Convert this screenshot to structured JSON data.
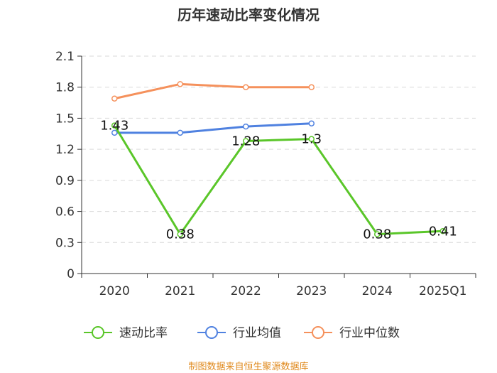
{
  "footer": {
    "source": "制图数据来自恒生聚源数据库"
  },
  "chart_data": {
    "type": "line",
    "title": "历年速动比率变化情况",
    "xlabel": "",
    "ylabel": "",
    "categories": [
      "2020",
      "2021",
      "2022",
      "2023",
      "2024",
      "2025Q1"
    ],
    "ylim": [
      0,
      2.1
    ],
    "yticks": [
      0,
      0.3,
      0.6,
      0.9,
      1.2,
      1.5,
      1.8,
      2.1
    ],
    "ytick_labels": [
      "0",
      "0.3",
      "0.6",
      "0.9",
      "1.2",
      "1.5",
      "1.8",
      "2.1"
    ],
    "grid": true,
    "legend_position": "bottom",
    "series": [
      {
        "name": "速动比率",
        "color": "#5ac629",
        "values": [
          1.43,
          0.38,
          1.28,
          1.3,
          0.38,
          0.41
        ],
        "labels": [
          "1.43",
          "0.38",
          "1.28",
          "1.3",
          "0.38",
          "0.41"
        ],
        "show_labels": true
      },
      {
        "name": "行业均值",
        "color": "#4f81e0",
        "values": [
          1.36,
          1.36,
          1.42,
          1.45,
          null,
          null
        ],
        "show_labels": false
      },
      {
        "name": "行业中位数",
        "color": "#f5915c",
        "values": [
          1.69,
          1.83,
          1.8,
          1.8,
          null,
          null
        ],
        "show_labels": false
      }
    ]
  }
}
